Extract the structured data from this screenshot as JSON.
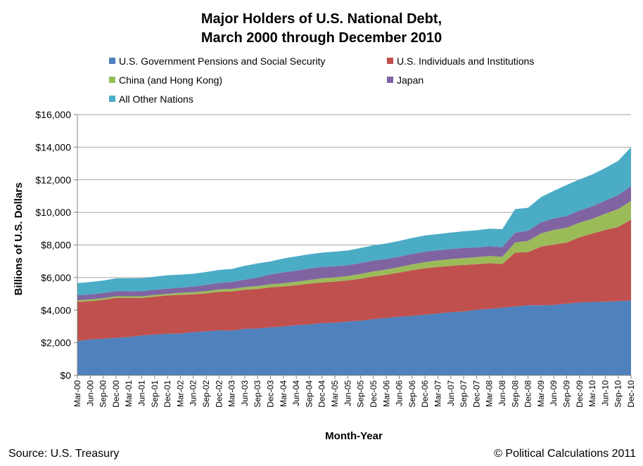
{
  "chart_data": {
    "type": "area",
    "stacked": true,
    "title_lines": [
      "Major Holders of U.S. National Debt,",
      "March 2000 through December 2010"
    ],
    "xlabel": "Month-Year",
    "ylabel": "Billions of U.S. Dollars",
    "ylim": [
      0,
      16000
    ],
    "y_ticks": [
      0,
      2000,
      4000,
      6000,
      8000,
      10000,
      12000,
      14000,
      16000
    ],
    "y_tick_labels": [
      "$0",
      "$2,000",
      "$4,000",
      "$6,000",
      "$8,000",
      "$10,000",
      "$12,000",
      "$14,000",
      "$16,000"
    ],
    "x_tick_labels": [
      "Mar-00",
      "Jun-00",
      "Sep-00",
      "Dec-00",
      "Mar-01",
      "Jun-01",
      "Sep-01",
      "Dec-01",
      "Mar-02",
      "Jun-02",
      "Sep-02",
      "Dec-02",
      "Mar-03",
      "Jun-03",
      "Sep-03",
      "Dec-03",
      "Mar-04",
      "Jun-04",
      "Sep-04",
      "Dec-04",
      "Mar-05",
      "Jun-05",
      "Sep-05",
      "Dec-05",
      "Mar-06",
      "Jun-06",
      "Sep-06",
      "Dec-06",
      "Mar-07",
      "Jun-07",
      "Sep-07",
      "Dec-07",
      "Mar-08",
      "Jun-08",
      "Sep-08",
      "Dec-08",
      "Mar-09",
      "Jun-09",
      "Sep-09",
      "Dec-09",
      "Mar-10",
      "Jun-10",
      "Sep-10",
      "Dec-10"
    ],
    "grid": "horizontal",
    "legend_position": "top",
    "series": [
      {
        "name": "U.S. Government Pensions and Social Security",
        "color": "#4f81bd",
        "values": [
          2100,
          2200,
          2250,
          2300,
          2350,
          2450,
          2500,
          2550,
          2560,
          2650,
          2700,
          2760,
          2750,
          2850,
          2880,
          2950,
          3000,
          3080,
          3120,
          3200,
          3230,
          3300,
          3350,
          3450,
          3520,
          3600,
          3650,
          3720,
          3800,
          3870,
          3920,
          4020,
          4080,
          4150,
          4230,
          4300,
          4300,
          4320,
          4400,
          4470,
          4500,
          4520,
          4550,
          4600
        ]
      },
      {
        "name": "U.S. Individuals and Institutions",
        "color": "#c0504d",
        "values": [
          2400,
          2350,
          2380,
          2450,
          2400,
          2300,
          2330,
          2350,
          2380,
          2320,
          2330,
          2360,
          2400,
          2400,
          2420,
          2450,
          2450,
          2450,
          2500,
          2500,
          2520,
          2520,
          2580,
          2620,
          2650,
          2700,
          2800,
          2850,
          2850,
          2850,
          2850,
          2800,
          2800,
          2680,
          3300,
          3250,
          3600,
          3700,
          3750,
          4000,
          4200,
          4400,
          4550,
          4950
        ]
      },
      {
        "name": "China (and Hong Kong)",
        "color": "#9bbb59",
        "values": [
          110,
          105,
          100,
          100,
          100,
          100,
          100,
          100,
          120,
          130,
          140,
          150,
          160,
          170,
          180,
          190,
          200,
          210,
          230,
          250,
          260,
          270,
          290,
          310,
          320,
          340,
          360,
          380,
          400,
          410,
          420,
          430,
          440,
          450,
          620,
          700,
          800,
          900,
          900,
          900,
          900,
          1000,
          1100,
          1150
        ]
      },
      {
        "name": "Japan",
        "color": "#8064a2",
        "values": [
          300,
          310,
          315,
          320,
          315,
          310,
          315,
          320,
          320,
          350,
          380,
          400,
          420,
          450,
          520,
          600,
          670,
          680,
          700,
          700,
          680,
          670,
          670,
          660,
          650,
          640,
          640,
          640,
          620,
          620,
          620,
          600,
          600,
          590,
          600,
          630,
          680,
          700,
          730,
          750,
          780,
          800,
          860,
          900
        ]
      },
      {
        "name": "All Other Nations",
        "color": "#4bacc6",
        "values": [
          750,
          760,
          770,
          780,
          790,
          800,
          810,
          820,
          800,
          780,
          790,
          800,
          800,
          850,
          870,
          800,
          850,
          880,
          880,
          880,
          900,
          900,
          920,
          940,
          950,
          970,
          980,
          990,
          1000,
          1010,
          1030,
          1050,
          1080,
          1100,
          1450,
          1400,
          1550,
          1700,
          1900,
          1900,
          1950,
          2000,
          2100,
          2400
        ]
      }
    ]
  },
  "footer": {
    "source": "Source: U.S. Treasury",
    "credit": "© Political Calculations 2011"
  }
}
